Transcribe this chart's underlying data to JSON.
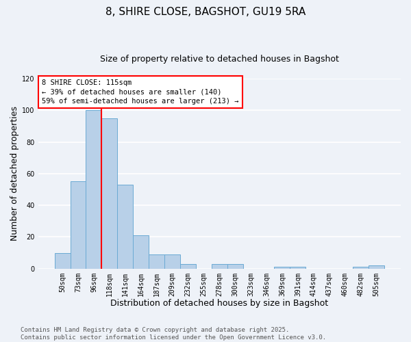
{
  "title": "8, SHIRE CLOSE, BAGSHOT, GU19 5RA",
  "subtitle": "Size of property relative to detached houses in Bagshot",
  "xlabel": "Distribution of detached houses by size in Bagshot",
  "ylabel": "Number of detached properties",
  "footer": "Contains HM Land Registry data © Crown copyright and database right 2025.\nContains public sector information licensed under the Open Government Licence v3.0.",
  "bin_labels": [
    "50sqm",
    "73sqm",
    "96sqm",
    "118sqm",
    "141sqm",
    "164sqm",
    "187sqm",
    "209sqm",
    "232sqm",
    "255sqm",
    "278sqm",
    "300sqm",
    "323sqm",
    "346sqm",
    "369sqm",
    "391sqm",
    "414sqm",
    "437sqm",
    "460sqm",
    "482sqm",
    "505sqm"
  ],
  "bar_values": [
    10,
    55,
    100,
    95,
    53,
    21,
    9,
    9,
    3,
    0,
    3,
    3,
    0,
    0,
    1,
    1,
    0,
    0,
    0,
    1,
    2
  ],
  "bar_color": "#b8d0e8",
  "bar_edge_color": "#6aaad4",
  "vline_x": 2.5,
  "vline_color": "red",
  "annotation_text": "8 SHIRE CLOSE: 115sqm\n← 39% of detached houses are smaller (140)\n59% of semi-detached houses are larger (213) →",
  "annotation_box_color": "white",
  "annotation_box_edge_color": "red",
  "ylim": [
    0,
    120
  ],
  "yticks": [
    0,
    20,
    40,
    60,
    80,
    100,
    120
  ],
  "background_color": "#eef2f8",
  "grid_color": "white",
  "title_fontsize": 11,
  "subtitle_fontsize": 9,
  "axis_label_fontsize": 9,
  "tick_fontsize": 7,
  "annotation_fontsize": 7.5,
  "footer_fontsize": 6.5
}
